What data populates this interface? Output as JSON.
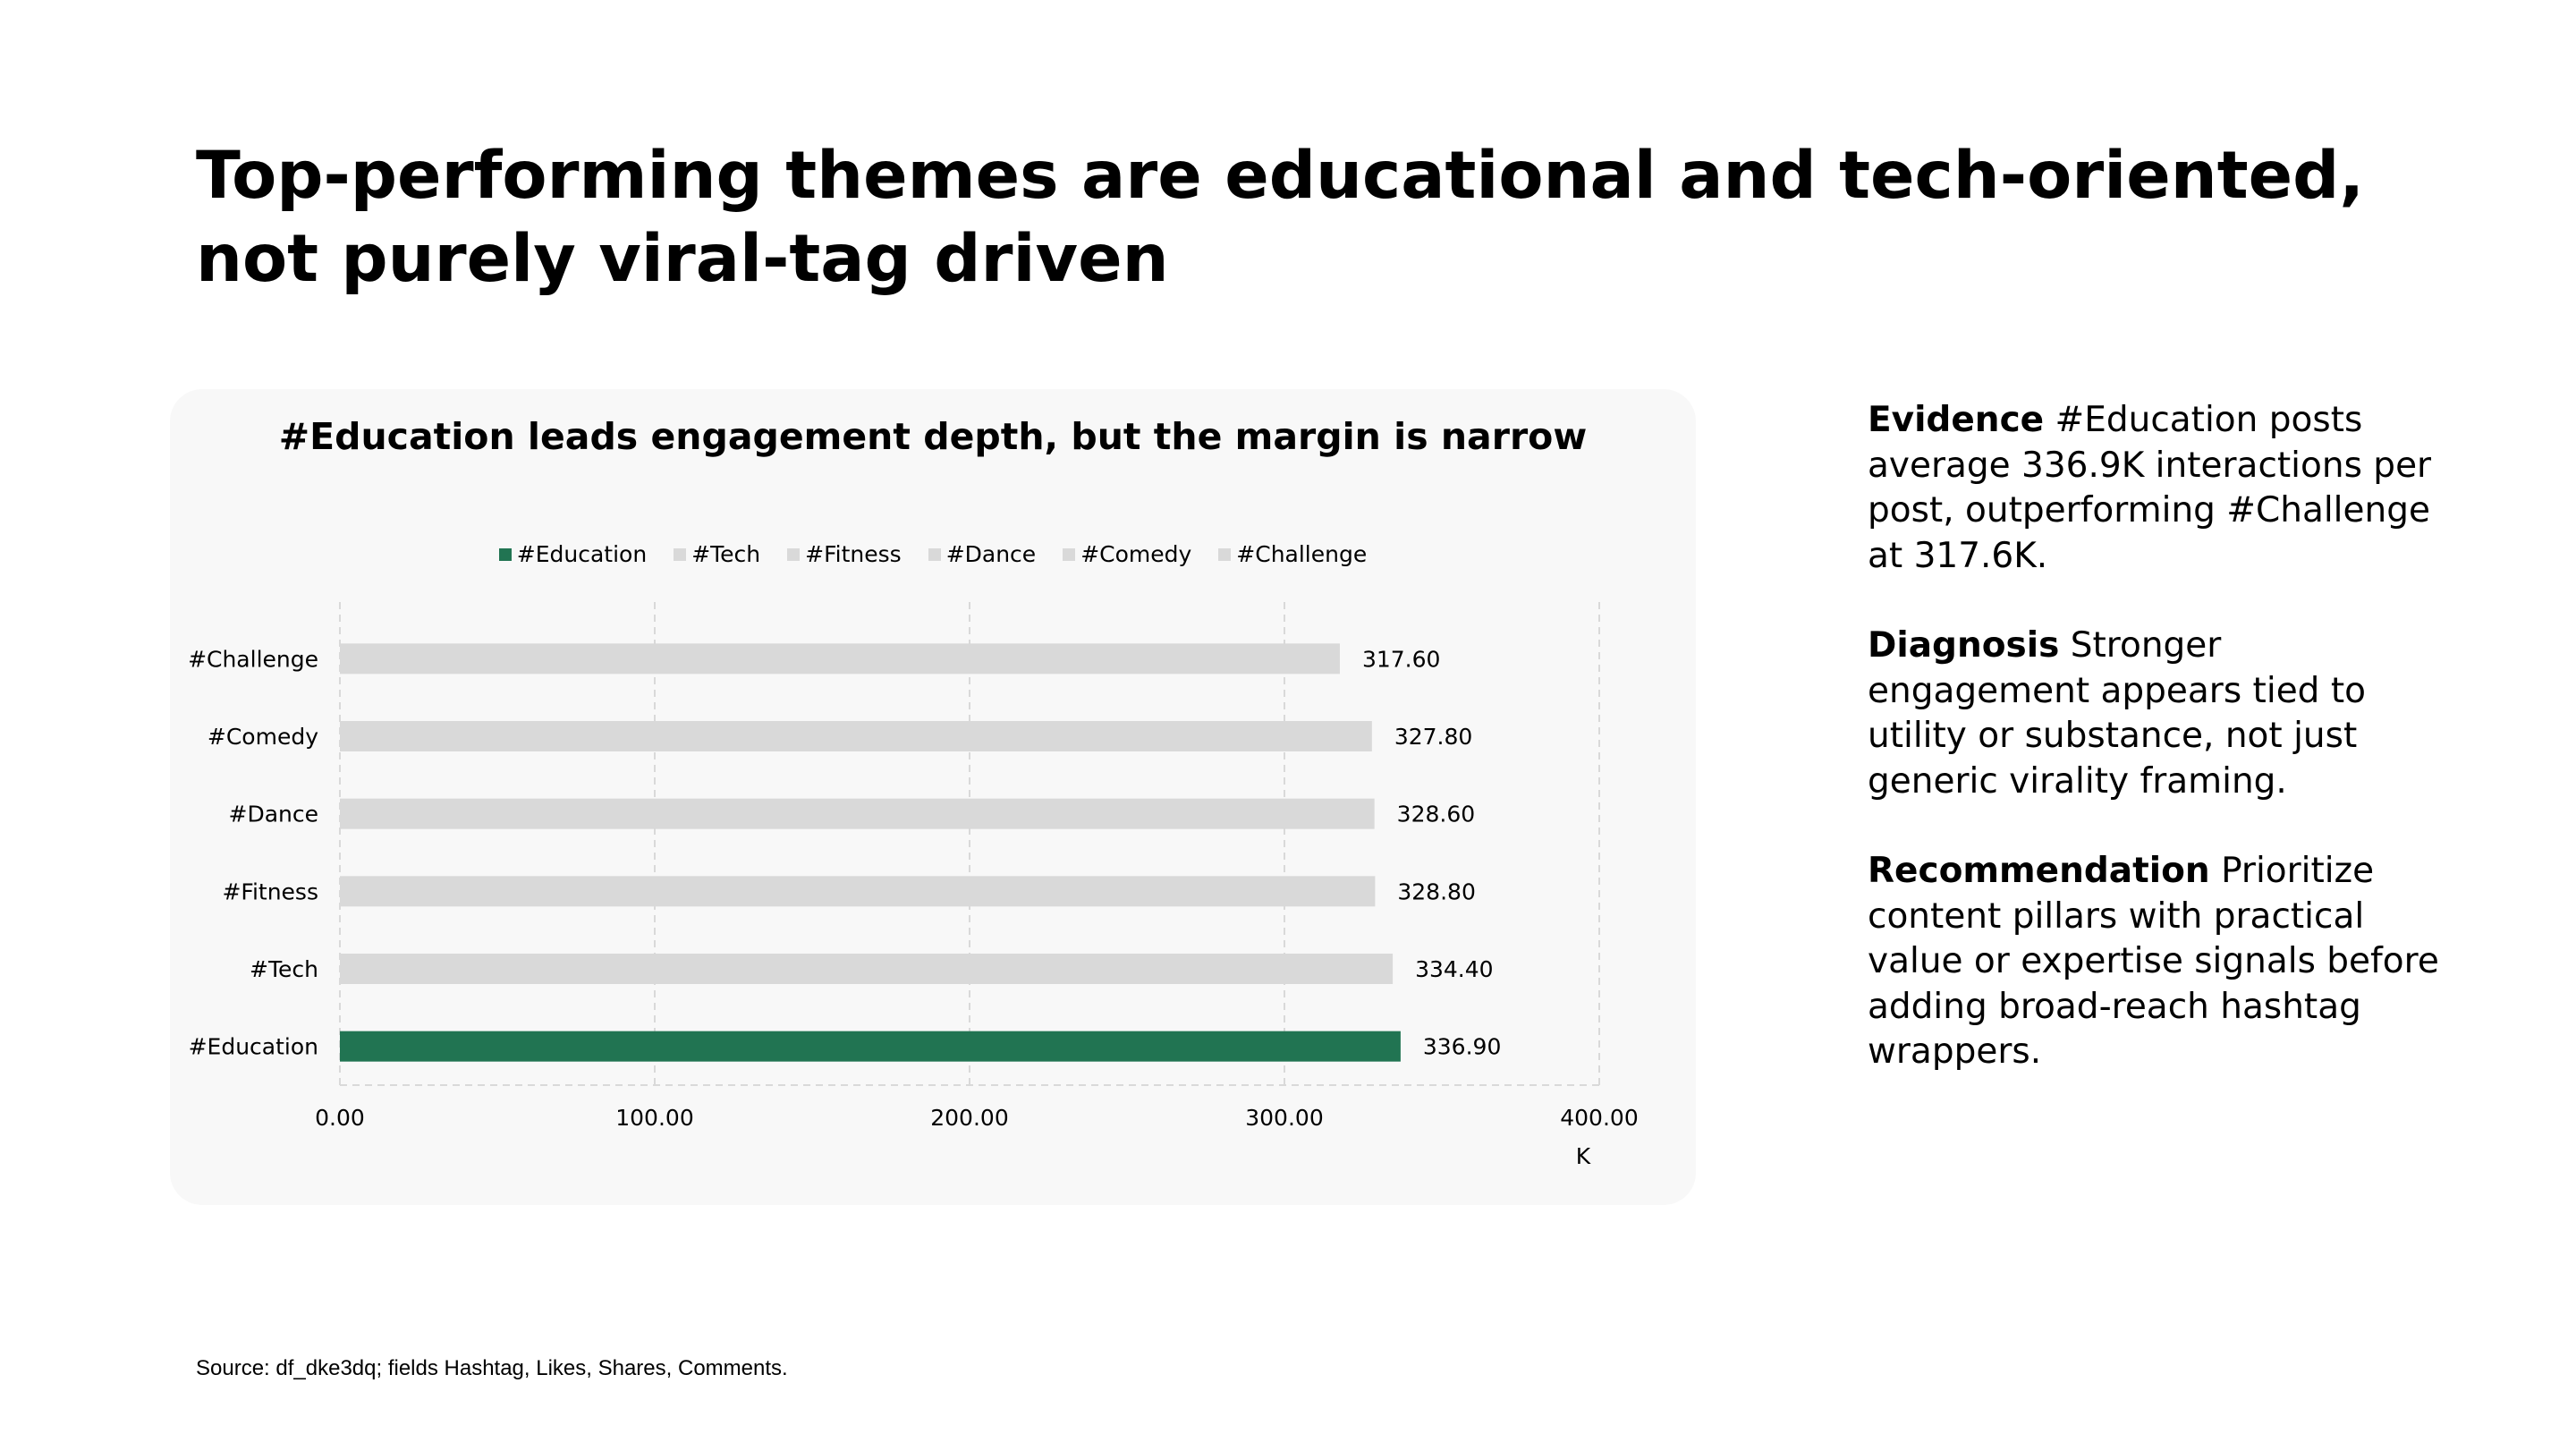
{
  "title": "Top-performing themes are educational and tech-oriented, not purely viral-tag driven",
  "chart_data": {
    "type": "bar",
    "orientation": "horizontal",
    "title": "#Education leads engagement depth, but the margin is narrow",
    "categories": [
      "#Education",
      "#Tech",
      "#Fitness",
      "#Dance",
      "#Comedy",
      "#Challenge"
    ],
    "values": [
      336.9,
      334.4,
      328.8,
      328.6,
      327.8,
      317.6
    ],
    "data_labels": [
      "336.90",
      "334.40",
      "328.80",
      "328.60",
      "327.80",
      "317.60"
    ],
    "colors": [
      "#217452",
      "#d9d9d9",
      "#d9d9d9",
      "#d9d9d9",
      "#d9d9d9",
      "#d9d9d9"
    ],
    "xlim": [
      0,
      400
    ],
    "xticks": [
      "0.00",
      "100.00",
      "200.00",
      "300.00",
      "400.00"
    ],
    "xlabel": "K",
    "ylabel": "",
    "grid": "vertical dashed",
    "legend": {
      "placement": "top",
      "entries": [
        "#Education",
        "#Tech",
        "#Fitness",
        "#Dance",
        "#Comedy",
        "#Challenge"
      ]
    }
  },
  "panel": {
    "evidence": {
      "label": "Evidence",
      "text": " #Education posts average 336.9K interactions per post, outperforming #Challenge at 317.6K."
    },
    "diagnosis": {
      "label": "Diagnosis",
      "text": " Stronger engagement appears tied to utility or substance, not just generic virality framing."
    },
    "recommendation": {
      "label": "Recommendation",
      "text": " Prioritize content pillars with practical value or expertise signals before adding broad-reach hashtag wrappers."
    }
  },
  "source": "Source: df_dke3dq; fields Hashtag, Likes, Shares, Comments."
}
